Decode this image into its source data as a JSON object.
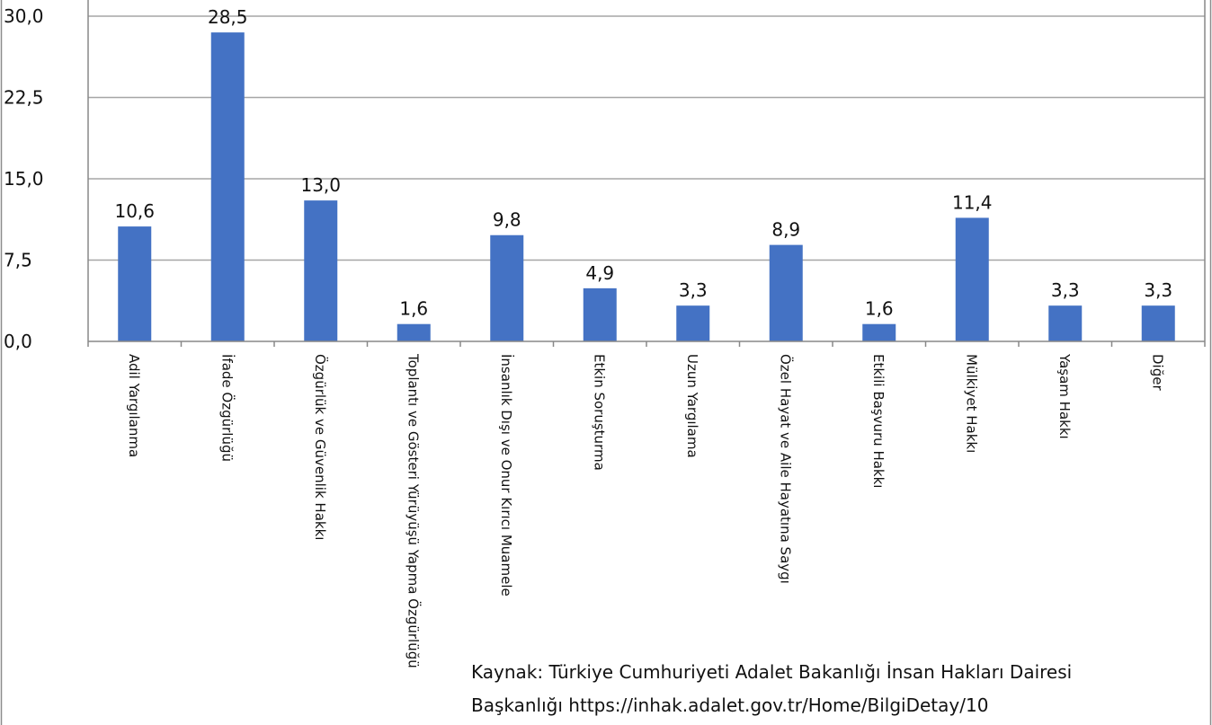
{
  "chart_data": {
    "type": "bar",
    "categories": [
      "Adil Yargılanma",
      "İfade Özgürlüğü",
      "Özgürlük ve Güvenlik Hakkı",
      "Toplantı ve Gösteri Yürüyüşü Yapma Özgürlüğü",
      "İnsanlık Dışı ve Onur Kırıcı Muamele",
      "Etkin Soruşturma",
      "Uzun Yargılama",
      "Özel Hayat ve Aile Hayatına Saygı",
      "Etkili Başvuru Hakkı",
      "Mülkiyet Hakkı",
      "Yaşam Hakkı",
      "Diğer"
    ],
    "values": [
      10.6,
      28.5,
      13.0,
      1.6,
      9.8,
      4.9,
      3.3,
      8.9,
      1.6,
      11.4,
      3.3,
      3.3
    ],
    "value_labels": [
      "10,6",
      "28,5",
      "13,0",
      "1,6",
      "9,8",
      "4,9",
      "3,3",
      "8,9",
      "1,6",
      "11,4",
      "3,3",
      "3,3"
    ],
    "yticks": [
      0,
      7.5,
      15,
      22.5,
      30
    ],
    "ytick_labels": [
      "0,0",
      "7,5",
      "15,0",
      "22,5",
      "30,0"
    ],
    "ylim": [
      0,
      30
    ],
    "grid": true,
    "bar_color": "#4472c4",
    "grid_color": "#a6a6a6",
    "axis_color": "#888888"
  },
  "source": {
    "line1": "Kaynak: Türkiye Cumhuriyeti Adalet Bakanlığı İnsan Hakları Dairesi",
    "line2": "Başkanlığı https://inhak.adalet.gov.tr/Home/BilgiDetay/10"
  }
}
